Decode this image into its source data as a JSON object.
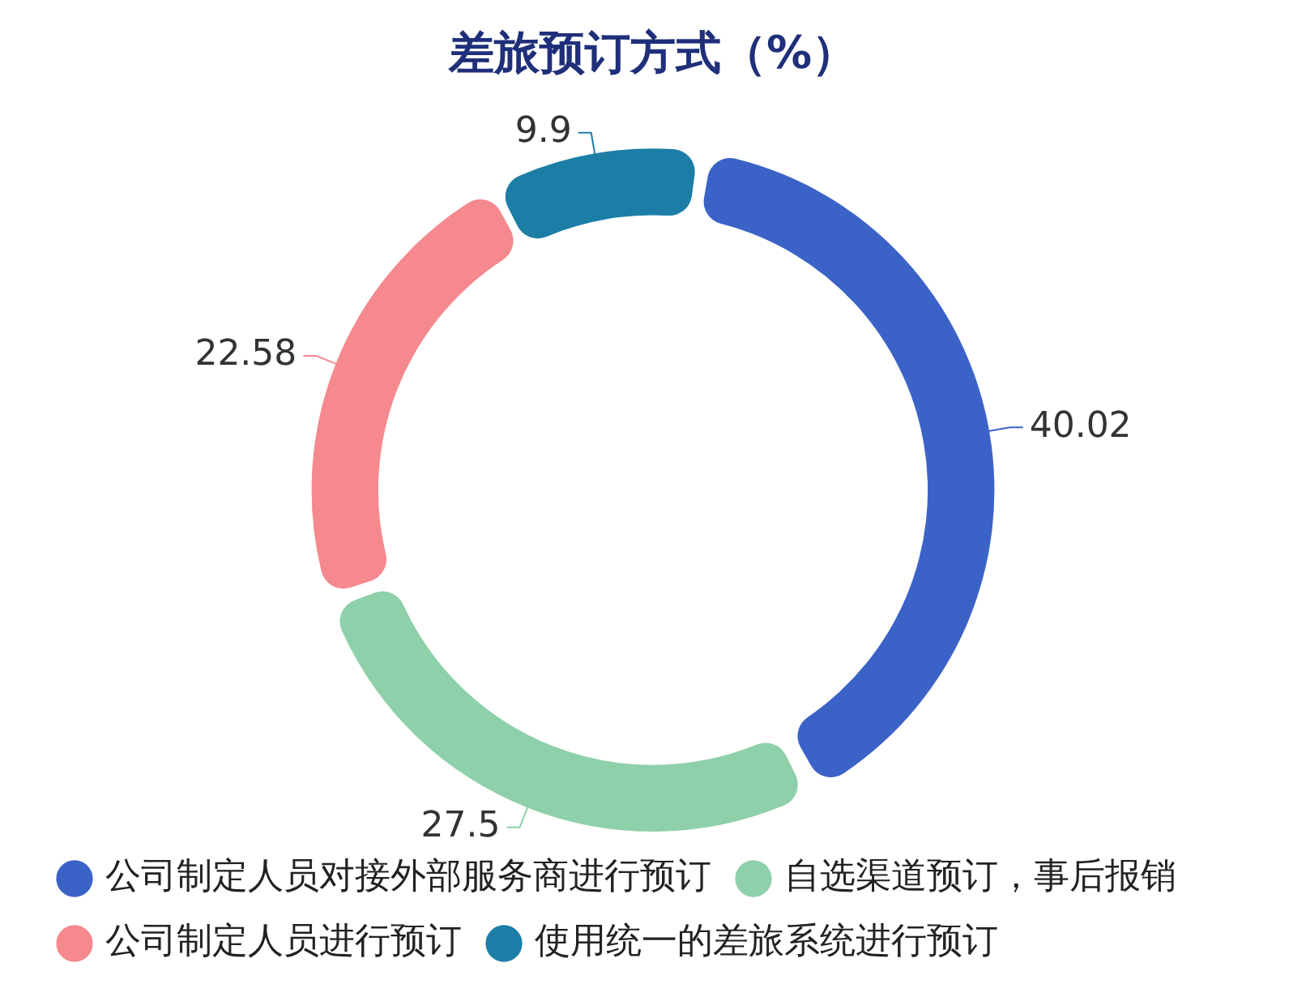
{
  "chart_data": {
    "type": "donut",
    "title": "差旅预订方式（%）",
    "categories": [
      "公司制定人员对接外部服务商进行预订",
      "自选渠道预订，事后报销",
      "公司制定人员进行预订",
      "使用统一的差旅系统进行预订"
    ],
    "values": [
      40.02,
      27.5,
      22.58,
      9.9
    ],
    "colors": [
      "#3b63c7",
      "#8ed0a9",
      "#f5898e",
      "#1c7ea6"
    ],
    "data_labels": true,
    "legend": "bottom"
  }
}
